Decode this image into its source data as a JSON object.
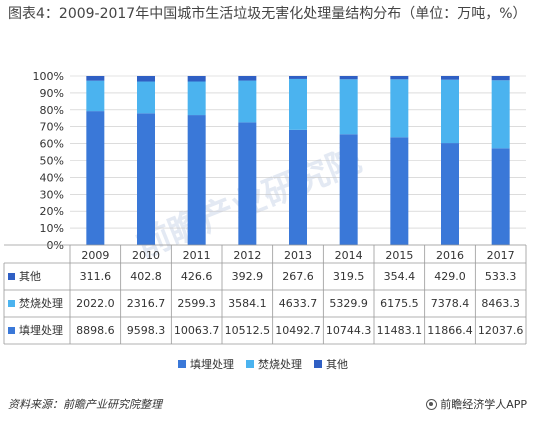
{
  "title": "图表4：2009-2017年中国城市生活垃圾无害化处理量结构分布（单位：万吨，%）",
  "colors": {
    "landfill": "#3a78d8",
    "incineration": "#4bb3ef",
    "other": "#2f5fc4",
    "grid": "#c8c8c8",
    "watermark": "#e3e9f3"
  },
  "watermark_text": "前瞻产业研究院",
  "chart_data": {
    "type": "bar",
    "stacked": "percent",
    "categories": [
      "2009",
      "2010",
      "2011",
      "2012",
      "2013",
      "2014",
      "2015",
      "2016",
      "2017"
    ],
    "series": [
      {
        "name": "填埋处理",
        "key": "landfill",
        "values": [
          8898.6,
          9598.3,
          10063.7,
          10512.5,
          10492.7,
          10744.3,
          11483.1,
          11866.4,
          12037.6
        ]
      },
      {
        "name": "焚烧处理",
        "key": "incineration",
        "values": [
          2022.0,
          2316.7,
          2599.3,
          3584.1,
          4633.7,
          5329.9,
          6175.5,
          7378.4,
          8463.3
        ]
      },
      {
        "name": "其他",
        "key": "other",
        "values": [
          311.6,
          402.8,
          426.6,
          392.9,
          267.6,
          319.5,
          354.4,
          429.0,
          533.3
        ]
      }
    ],
    "y_ticks": [
      "0%",
      "10%",
      "20%",
      "30%",
      "40%",
      "50%",
      "60%",
      "70%",
      "80%",
      "90%",
      "100%"
    ],
    "ylim": [
      0,
      100
    ],
    "table": {
      "rows": [
        {
          "label": "其他",
          "key": "other",
          "values": [
            "311.6",
            "402.8",
            "426.6",
            "392.9",
            "267.6",
            "319.5",
            "354.4",
            "429.0",
            "533.3"
          ]
        },
        {
          "label": "焚烧处理",
          "key": "incineration",
          "values": [
            "2022.0",
            "2316.7",
            "2599.3",
            "3584.1",
            "4633.7",
            "5329.9",
            "6175.5",
            "7378.4",
            "8463.3"
          ]
        },
        {
          "label": "填埋处理",
          "key": "landfill",
          "values": [
            "8898.6",
            "9598.3",
            "10063.7",
            "10512.5",
            "10492.7",
            "10744.3",
            "11483.1",
            "11866.4",
            "12037.6"
          ]
        }
      ]
    },
    "legend": [
      "填埋处理",
      "焚烧处理",
      "其他"
    ],
    "legend_position": "bottom"
  },
  "footer": {
    "source": "资料来源：前瞻产业研究院整理",
    "brand": "前瞻经济学人APP"
  }
}
